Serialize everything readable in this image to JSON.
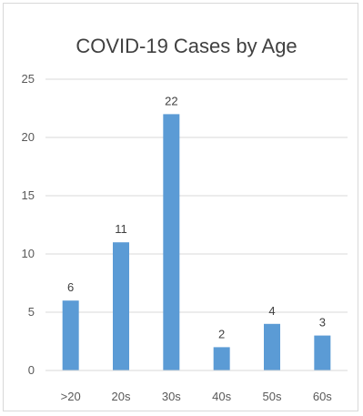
{
  "chart_data": {
    "type": "bar",
    "title": "COVID-19 Cases by Age",
    "categories": [
      ">20",
      "20s",
      "30s",
      "40s",
      "50s",
      "60s"
    ],
    "values": [
      6,
      11,
      22,
      2,
      4,
      3
    ],
    "data_labels": [
      "6",
      "11",
      "22",
      "2",
      "4",
      "3"
    ],
    "ylim": [
      0,
      25
    ],
    "yticks": [
      "0",
      "5",
      "10",
      "15",
      "20",
      "25"
    ],
    "grid": true,
    "legend": "none",
    "bar_color": "#5b9bd5",
    "grid_color": "#d9d9d9"
  }
}
